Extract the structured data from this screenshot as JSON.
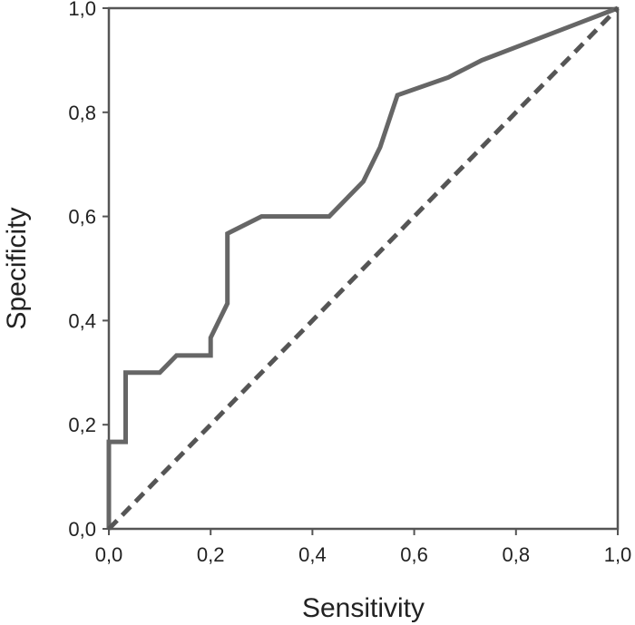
{
  "chart_data": {
    "type": "line",
    "title": "",
    "xlabel": "Sensitivity",
    "ylabel": "Specificity",
    "xlim": [
      0,
      1
    ],
    "ylim": [
      0,
      1
    ],
    "grid": false,
    "x_ticks": [
      {
        "value": 0.0,
        "label": "0,0"
      },
      {
        "value": 0.2,
        "label": "0,2"
      },
      {
        "value": 0.4,
        "label": "0,4"
      },
      {
        "value": 0.6,
        "label": "0,6"
      },
      {
        "value": 0.8,
        "label": "0,8"
      },
      {
        "value": 1.0,
        "label": "1,0"
      }
    ],
    "y_ticks": [
      {
        "value": 0.0,
        "label": "0,0"
      },
      {
        "value": 0.2,
        "label": "0,2"
      },
      {
        "value": 0.4,
        "label": "0,4"
      },
      {
        "value": 0.6,
        "label": "0,6"
      },
      {
        "value": 0.8,
        "label": "0,8"
      },
      {
        "value": 1.0,
        "label": "1,0"
      }
    ],
    "series": [
      {
        "style": "solid",
        "color": "#666666",
        "points": [
          [
            0.0,
            0.0
          ],
          [
            0.0,
            0.167
          ],
          [
            0.033,
            0.167
          ],
          [
            0.033,
            0.3
          ],
          [
            0.1,
            0.3
          ],
          [
            0.133,
            0.333
          ],
          [
            0.2,
            0.333
          ],
          [
            0.2,
            0.367
          ],
          [
            0.233,
            0.433
          ],
          [
            0.233,
            0.567
          ],
          [
            0.3,
            0.6
          ],
          [
            0.433,
            0.6
          ],
          [
            0.5,
            0.667
          ],
          [
            0.533,
            0.733
          ],
          [
            0.567,
            0.833
          ],
          [
            0.667,
            0.867
          ],
          [
            0.733,
            0.9
          ],
          [
            1.0,
            1.0
          ]
        ]
      },
      {
        "style": "dashed",
        "color": "#555555",
        "points": [
          [
            0.0,
            0.0
          ],
          [
            1.0,
            1.0
          ]
        ]
      }
    ]
  }
}
